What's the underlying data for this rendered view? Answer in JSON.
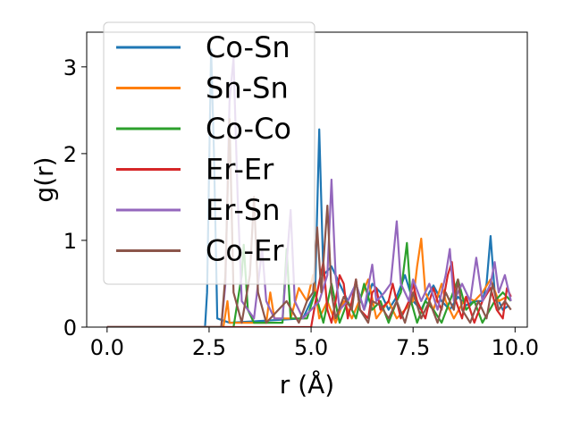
{
  "chart_data": {
    "type": "line",
    "title": "",
    "xlabel": "r (Å)",
    "ylabel": "g(r)",
    "xlim": [
      -0.5,
      10.3
    ],
    "ylim": [
      0,
      3.4
    ],
    "xticks": [
      0.0,
      2.5,
      5.0,
      7.5,
      10.0
    ],
    "xtick_labels": [
      "0.0",
      "2.5",
      "5.0",
      "7.5",
      "10.0"
    ],
    "yticks": [
      0,
      1,
      2,
      3
    ],
    "ytick_labels": [
      "0",
      "1",
      "2",
      "3"
    ],
    "grid": false,
    "legend_position": "top-left",
    "series": [
      {
        "name": "Co-Sn",
        "color": "#1f77b4",
        "points": [
          [
            0,
            0
          ],
          [
            2.4,
            0
          ],
          [
            2.45,
            0.4
          ],
          [
            2.55,
            3.2
          ],
          [
            2.62,
            2.0
          ],
          [
            2.7,
            0.1
          ],
          [
            3.0,
            0.05
          ],
          [
            4.8,
            0.1
          ],
          [
            5.1,
            0.4
          ],
          [
            5.2,
            2.28
          ],
          [
            5.3,
            0.6
          ],
          [
            5.5,
            0.7
          ],
          [
            5.7,
            0.5
          ],
          [
            5.9,
            0.3
          ],
          [
            6.1,
            0.5
          ],
          [
            6.3,
            0.2
          ],
          [
            6.5,
            0.5
          ],
          [
            6.7,
            0.4
          ],
          [
            6.9,
            0.2
          ],
          [
            7.1,
            0.35
          ],
          [
            7.3,
            0.6
          ],
          [
            7.5,
            0.3
          ],
          [
            7.7,
            0.2
          ],
          [
            7.9,
            0.4
          ],
          [
            8.0,
            0.48
          ],
          [
            8.2,
            0.3
          ],
          [
            8.4,
            0.2
          ],
          [
            8.6,
            0.35
          ],
          [
            8.8,
            0.25
          ],
          [
            9.0,
            0.3
          ],
          [
            9.2,
            0.3
          ],
          [
            9.3,
            0.5
          ],
          [
            9.4,
            1.05
          ],
          [
            9.5,
            0.4
          ],
          [
            9.7,
            0.2
          ],
          [
            9.85,
            0.25
          ]
        ]
      },
      {
        "name": "Sn-Sn",
        "color": "#ff7f0e",
        "points": [
          [
            0,
            0
          ],
          [
            2.85,
            0
          ],
          [
            2.95,
            0.3
          ],
          [
            3.0,
            0.05
          ],
          [
            3.9,
            0.05
          ],
          [
            4.0,
            0.4
          ],
          [
            4.1,
            0.1
          ],
          [
            4.5,
            0.1
          ],
          [
            4.7,
            0.45
          ],
          [
            4.9,
            0.3
          ],
          [
            5.05,
            0.6
          ],
          [
            5.2,
            0.1
          ],
          [
            5.4,
            0.3
          ],
          [
            5.6,
            0.05
          ],
          [
            5.8,
            0.3
          ],
          [
            6.0,
            0.1
          ],
          [
            6.4,
            0.55
          ],
          [
            6.6,
            0.1
          ],
          [
            6.9,
            0.3
          ],
          [
            7.1,
            0.1
          ],
          [
            7.3,
            0.2
          ],
          [
            7.5,
            0.3
          ],
          [
            7.6,
            0.7
          ],
          [
            7.7,
            1.02
          ],
          [
            7.8,
            0.4
          ],
          [
            8.0,
            0.2
          ],
          [
            8.2,
            0.5
          ],
          [
            8.3,
            0.3
          ],
          [
            8.5,
            0.1
          ],
          [
            8.8,
            0.35
          ],
          [
            9.0,
            0.3
          ],
          [
            9.2,
            0.4
          ],
          [
            9.4,
            0.55
          ],
          [
            9.6,
            0.3
          ],
          [
            9.8,
            0.35
          ]
        ]
      },
      {
        "name": "Co-Co",
        "color": "#2ca02c",
        "points": [
          [
            0,
            0
          ],
          [
            3.1,
            0
          ],
          [
            3.3,
            0.6
          ],
          [
            3.35,
            0.95
          ],
          [
            3.45,
            0.2
          ],
          [
            3.6,
            0.05
          ],
          [
            4.3,
            0.05
          ],
          [
            4.4,
            0.9
          ],
          [
            4.5,
            0.1
          ],
          [
            4.9,
            0.1
          ],
          [
            5.1,
            0.4
          ],
          [
            5.3,
            0.05
          ],
          [
            5.5,
            0.5
          ],
          [
            5.7,
            0.05
          ],
          [
            5.9,
            0.3
          ],
          [
            6.1,
            0.1
          ],
          [
            6.3,
            0.5
          ],
          [
            6.5,
            0.2
          ],
          [
            6.7,
            0.3
          ],
          [
            6.9,
            0.05
          ],
          [
            7.1,
            0.3
          ],
          [
            7.2,
            0.4
          ],
          [
            7.35,
            0.97
          ],
          [
            7.45,
            0.3
          ],
          [
            7.6,
            0.05
          ],
          [
            7.8,
            0.3
          ],
          [
            8.0,
            0.2
          ],
          [
            8.2,
            0.05
          ],
          [
            8.4,
            0.3
          ],
          [
            8.6,
            0.55
          ],
          [
            8.8,
            0.2
          ],
          [
            9.0,
            0.3
          ],
          [
            9.2,
            0.05
          ],
          [
            9.5,
            0.3
          ],
          [
            9.7,
            0.4
          ],
          [
            9.9,
            0.3
          ]
        ]
      },
      {
        "name": "Er-Er",
        "color": "#d62728",
        "points": [
          [
            0,
            0
          ],
          [
            5.0,
            0
          ],
          [
            5.15,
            0.4
          ],
          [
            5.3,
            0.75
          ],
          [
            5.4,
            0.2
          ],
          [
            5.5,
            0.05
          ],
          [
            5.6,
            0.3
          ],
          [
            5.7,
            0.6
          ],
          [
            5.8,
            0.5
          ],
          [
            5.9,
            0.1
          ],
          [
            6.0,
            0.3
          ],
          [
            6.1,
            0.55
          ],
          [
            6.2,
            0.2
          ],
          [
            6.4,
            0.1
          ],
          [
            6.5,
            0.4
          ],
          [
            6.6,
            0.45
          ],
          [
            6.7,
            0.2
          ],
          [
            6.9,
            0.3
          ],
          [
            7.0,
            0.5
          ],
          [
            7.1,
            0.3
          ],
          [
            7.2,
            0.1
          ],
          [
            7.4,
            0.3
          ],
          [
            7.5,
            0.5
          ],
          [
            7.6,
            0.3
          ],
          [
            7.8,
            0.1
          ],
          [
            7.9,
            0.3
          ],
          [
            8.0,
            0.45
          ],
          [
            8.1,
            0.3
          ],
          [
            8.2,
            0.2
          ],
          [
            8.35,
            0.6
          ],
          [
            8.45,
            0.75
          ],
          [
            8.55,
            0.3
          ],
          [
            8.7,
            0.1
          ],
          [
            8.8,
            0.35
          ],
          [
            9.0,
            0.05
          ],
          [
            9.2,
            0.3
          ],
          [
            9.4,
            0.45
          ],
          [
            9.55,
            0.2
          ],
          [
            9.7,
            0.1
          ],
          [
            9.8,
            0.45
          ],
          [
            9.9,
            0.35
          ]
        ]
      },
      {
        "name": "Er-Sn",
        "color": "#9467bd",
        "points": [
          [
            0,
            0
          ],
          [
            2.8,
            0
          ],
          [
            2.9,
            0.5
          ],
          [
            3.0,
            2.6
          ],
          [
            3.1,
            3.1
          ],
          [
            3.2,
            1.5
          ],
          [
            3.3,
            0.3
          ],
          [
            3.6,
            0.1
          ],
          [
            3.8,
            0.9
          ],
          [
            3.9,
            0.3
          ],
          [
            4.1,
            0.1
          ],
          [
            4.3,
            0.1
          ],
          [
            4.5,
            1.35
          ],
          [
            4.6,
            0.3
          ],
          [
            4.8,
            0.1
          ],
          [
            5.0,
            0.2
          ],
          [
            5.2,
            0.3
          ],
          [
            5.4,
            0.6
          ],
          [
            5.5,
            1.7
          ],
          [
            5.6,
            0.6
          ],
          [
            5.7,
            0.2
          ],
          [
            5.9,
            0.3
          ],
          [
            6.1,
            0.5
          ],
          [
            6.3,
            0.2
          ],
          [
            6.5,
            0.72
          ],
          [
            6.6,
            0.3
          ],
          [
            6.8,
            0.4
          ],
          [
            6.95,
            0.5
          ],
          [
            7.1,
            1.22
          ],
          [
            7.2,
            0.5
          ],
          [
            7.4,
            0.3
          ],
          [
            7.5,
            0.55
          ],
          [
            7.7,
            0.3
          ],
          [
            7.9,
            0.5
          ],
          [
            8.1,
            0.2
          ],
          [
            8.3,
            0.6
          ],
          [
            8.4,
            0.9
          ],
          [
            8.5,
            0.3
          ],
          [
            8.7,
            0.5
          ],
          [
            8.9,
            0.3
          ],
          [
            9.05,
            0.8
          ],
          [
            9.2,
            0.3
          ],
          [
            9.4,
            0.5
          ],
          [
            9.5,
            0.75
          ],
          [
            9.6,
            0.4
          ],
          [
            9.75,
            0.6
          ],
          [
            9.9,
            0.3
          ]
        ]
      },
      {
        "name": "Co-Er",
        "color": "#8c564b",
        "points": [
          [
            0,
            0
          ],
          [
            2.8,
            0
          ],
          [
            2.9,
            0.6
          ],
          [
            3.0,
            2.4
          ],
          [
            3.1,
            0.4
          ],
          [
            3.3,
            0.05
          ],
          [
            3.5,
            0.6
          ],
          [
            3.6,
            1.5
          ],
          [
            3.7,
            0.4
          ],
          [
            3.9,
            0.05
          ],
          [
            4.4,
            0.3
          ],
          [
            4.7,
            0.05
          ],
          [
            4.9,
            0.3
          ],
          [
            5.05,
            0.4
          ],
          [
            5.15,
            1.15
          ],
          [
            5.25,
            0.4
          ],
          [
            5.4,
            1.4
          ],
          [
            5.5,
            0.4
          ],
          [
            5.6,
            0.1
          ],
          [
            5.8,
            0.35
          ],
          [
            6.0,
            0.2
          ],
          [
            6.1,
            0.55
          ],
          [
            6.2,
            0.2
          ],
          [
            6.4,
            0.05
          ],
          [
            6.5,
            0.3
          ],
          [
            6.7,
            0.25
          ],
          [
            6.9,
            0.1
          ],
          [
            7.1,
            0.3
          ],
          [
            7.3,
            0.05
          ],
          [
            7.5,
            0.4
          ],
          [
            7.7,
            0.1
          ],
          [
            7.9,
            0.3
          ],
          [
            8.1,
            0.05
          ],
          [
            8.3,
            0.4
          ],
          [
            8.5,
            0.2
          ],
          [
            8.6,
            0.55
          ],
          [
            8.7,
            0.2
          ],
          [
            8.9,
            0.05
          ],
          [
            9.1,
            0.3
          ],
          [
            9.3,
            0.1
          ],
          [
            9.45,
            0.5
          ],
          [
            9.6,
            0.2
          ],
          [
            9.75,
            0.3
          ],
          [
            9.9,
            0.2
          ]
        ]
      }
    ]
  }
}
